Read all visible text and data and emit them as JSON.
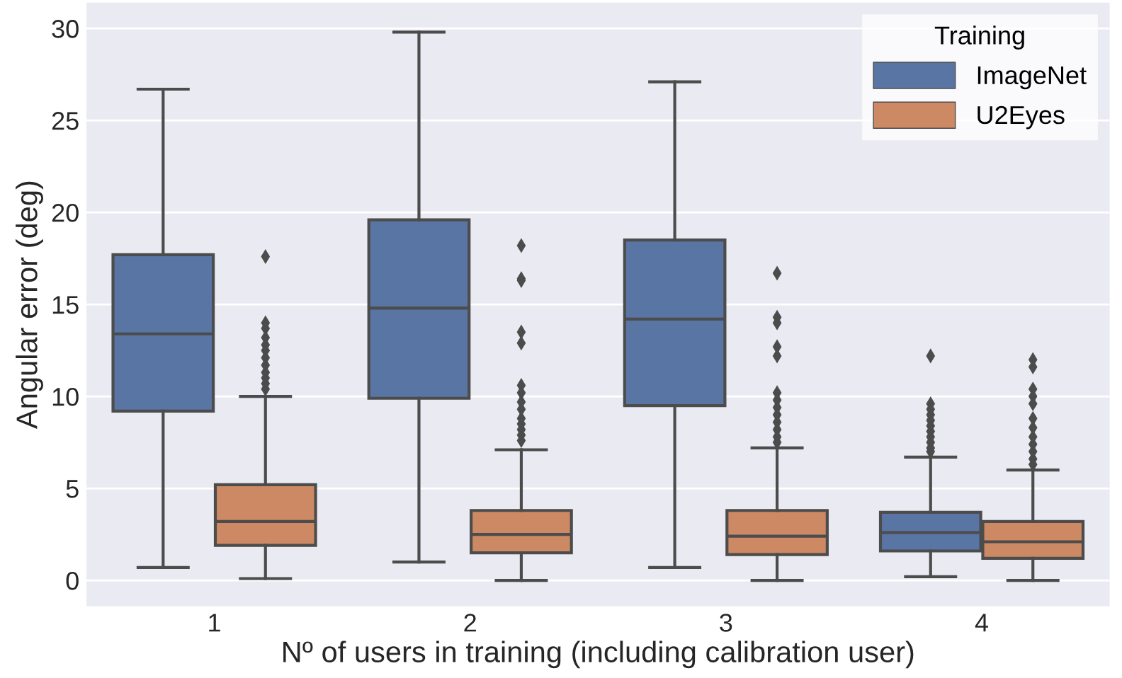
{
  "chart_data": {
    "type": "box",
    "xlabel": "Nº of users in training (including calibration user)",
    "ylabel": "Angular error (deg)",
    "legend_title": "Training",
    "categories": [
      "1",
      "2",
      "3",
      "4"
    ],
    "series": [
      {
        "name": "ImageNet",
        "color": "#5875a4",
        "boxes": [
          {
            "low": 0.7,
            "q1": 9.2,
            "median": 13.4,
            "q3": 17.7,
            "high": 26.7
          },
          {
            "low": 1.0,
            "q1": 9.9,
            "median": 14.8,
            "q3": 19.6,
            "high": 29.8
          },
          {
            "low": 0.7,
            "q1": 9.5,
            "median": 14.2,
            "q3": 18.5,
            "high": 27.1
          },
          {
            "low": 0.2,
            "q1": 1.6,
            "median": 2.6,
            "q3": 3.7,
            "high": 6.7,
            "outliers": [
              12.2,
              9.6,
              9.3,
              9.0,
              8.7,
              8.4,
              8.1,
              7.8,
              7.5,
              7.2,
              7.0
            ]
          }
        ]
      },
      {
        "name": "U2Eyes",
        "color": "#cc8963",
        "boxes": [
          {
            "low": 0.1,
            "q1": 1.9,
            "median": 3.2,
            "q3": 5.2,
            "high": 10.0,
            "outliers": [
              17.6,
              14.0,
              13.7,
              13.2,
              12.8,
              12.5,
              12.1,
              11.7,
              11.3,
              11.0,
              10.7,
              10.4
            ]
          },
          {
            "low": 0.0,
            "q1": 1.5,
            "median": 2.5,
            "q3": 3.8,
            "high": 7.1,
            "outliers": [
              18.2,
              16.4,
              16.3,
              13.5,
              12.9,
              10.6,
              10.2,
              9.7,
              9.3,
              8.8,
              8.5,
              8.2,
              7.9,
              7.6
            ]
          },
          {
            "low": 0.0,
            "q1": 1.4,
            "median": 2.4,
            "q3": 3.8,
            "high": 7.2,
            "outliers": [
              16.7,
              14.3,
              14.0,
              12.7,
              12.2,
              10.2,
              9.8,
              9.4,
              9.0,
              8.6,
              8.2,
              7.8,
              7.5
            ]
          },
          {
            "low": 0.0,
            "q1": 1.2,
            "median": 2.1,
            "q3": 3.2,
            "high": 6.0,
            "outliers": [
              12.0,
              11.6,
              10.4,
              10.0,
              9.6,
              8.8,
              8.3,
              7.8,
              7.4,
              7.0,
              6.6,
              6.3
            ]
          }
        ]
      }
    ],
    "ylim": [
      -1.4,
      31.4
    ],
    "yticks": [
      0,
      5,
      10,
      15,
      20,
      25,
      30
    ],
    "grid": "y",
    "legend": "top right",
    "marker": "diamond"
  }
}
